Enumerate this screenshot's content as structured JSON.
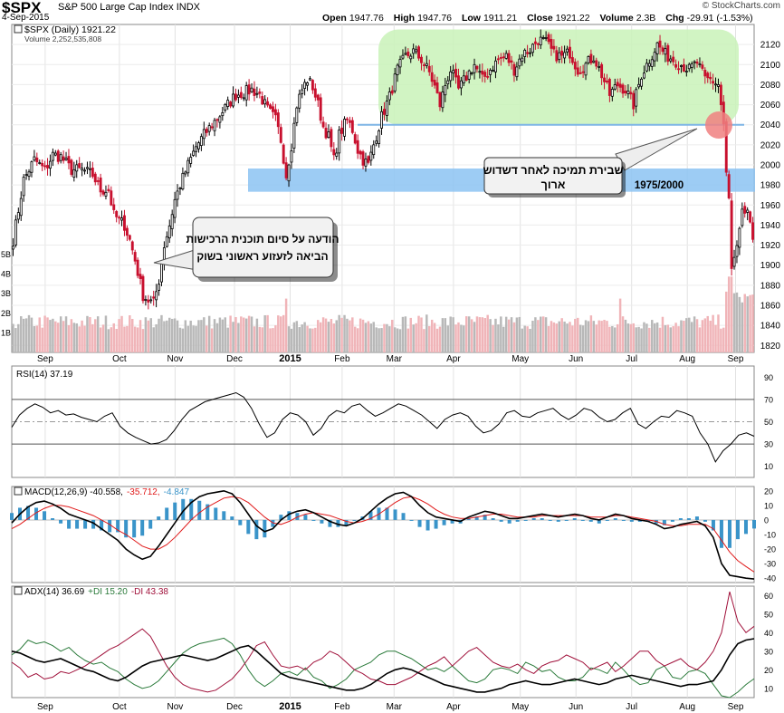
{
  "header": {
    "ticker": "$SPX",
    "name": "S&P 500 Large Cap Index",
    "exchange": "INDX",
    "date": "4-Sep-2015",
    "open_label": "Open",
    "open": "1947.76",
    "high_label": "High",
    "high": "1947.76",
    "low_label": "Low",
    "low": "1911.21",
    "close_label": "Close",
    "close": "1921.22",
    "volume_label": "Volume",
    "volume": "2.3B",
    "chg_label": "Chg",
    "chg": "-29.91 (-1.53%)",
    "brand": "© StockCharts.com"
  },
  "panels": {
    "price_legend": "$SPX (Daily) 1921.22",
    "volume_legend": "Volume 2,252,535,808",
    "rsi_legend": "RSI(14) 37.19",
    "macd_legend": "MACD(12,26,9) -40.558,",
    "macd_signal": "-35.712,",
    "macd_hist": "-4.847",
    "adx_legend": "ADX(14) 36.69",
    "plus_di": "+DI 15.20",
    "minus_di": "-DI 43.38"
  },
  "annotations": {
    "support_break": "שבירת תמיכה לאחר דשדוש\nארוך",
    "fed_note": "הודעה על סיום תוכנית הרכישות\nהביאה לזעזוע ראשוני בשוק",
    "support_level": "1975/2000"
  },
  "colors": {
    "up": "#000000",
    "down": "#c8102e",
    "vol_up": "#b8b8b8",
    "vol_down": "#f0b4b8",
    "consolidation_zone": "#c9f2b9",
    "support_zone": "#8cc3f2",
    "macd_hist": "#3a94c9",
    "signal": "#e01b1b"
  },
  "chart_data": [
    {
      "type": "candlestick",
      "title": "$SPX (Daily) 1921.22",
      "x_month_labels": [
        "Sep",
        "Oct",
        "Nov",
        "Dec",
        "2015",
        "Feb",
        "Mar",
        "Apr",
        "May",
        "Jun",
        "Jul",
        "Aug",
        "Sep"
      ],
      "ylim": [
        1813,
        2140
      ],
      "y_ticks": [
        1820,
        1840,
        1860,
        1880,
        1900,
        1920,
        1940,
        1960,
        1980,
        2000,
        2020,
        2040,
        2060,
        2080,
        2100,
        2120
      ],
      "volume_ticks": [
        "1B",
        "2B",
        "3B",
        "4B",
        "5B"
      ],
      "anchors": [
        [
          0,
          1925
        ],
        [
          4,
          1985
        ],
        [
          8,
          2005
        ],
        [
          12,
          1995
        ],
        [
          15,
          2010
        ],
        [
          18,
          2008
        ],
        [
          22,
          1995
        ],
        [
          26,
          1995
        ],
        [
          30,
          1990
        ],
        [
          33,
          1975
        ],
        [
          36,
          1975
        ],
        [
          38,
          1950
        ],
        [
          40,
          1945
        ],
        [
          42,
          1940
        ],
        [
          44,
          1925
        ],
        [
          46,
          1905
        ],
        [
          49,
          1870
        ],
        [
          51,
          1865
        ],
        [
          53,
          1862
        ],
        [
          55,
          1885
        ],
        [
          57,
          1920
        ],
        [
          59,
          1940
        ],
        [
          61,
          1965
        ],
        [
          63,
          1980
        ],
        [
          66,
          2000
        ],
        [
          69,
          2018
        ],
        [
          72,
          2030
        ],
        [
          75,
          2040
        ],
        [
          78,
          2050
        ],
        [
          81,
          2060
        ],
        [
          84,
          2070
        ],
        [
          87,
          2072
        ],
        [
          90,
          2075
        ],
        [
          93,
          2070
        ],
        [
          96,
          2055
        ],
        [
          99,
          2045
        ],
        [
          101,
          2025
        ],
        [
          103,
          1990
        ],
        [
          105,
          2020
        ],
        [
          107,
          2060
        ],
        [
          109,
          2075
        ],
        [
          111,
          2085
        ],
        [
          113,
          2078
        ],
        [
          115,
          2060
        ],
        [
          117,
          2038
        ],
        [
          119,
          2028
        ],
        [
          121,
          2005
        ],
        [
          123,
          2030
        ],
        [
          126,
          2045
        ],
        [
          128,
          2035
        ],
        [
          130,
          2015
        ],
        [
          132,
          2005
        ],
        [
          134,
          2000
        ],
        [
          136,
          2020
        ],
        [
          139,
          2048
        ],
        [
          142,
          2068
        ],
        [
          145,
          2095
        ],
        [
          148,
          2108
        ],
        [
          151,
          2113
        ],
        [
          154,
          2105
        ],
        [
          157,
          2092
        ],
        [
          159,
          2078
        ],
        [
          161,
          2060
        ],
        [
          163,
          2080
        ],
        [
          165,
          2095
        ],
        [
          168,
          2075
        ],
        [
          171,
          2088
        ],
        [
          174,
          2100
        ],
        [
          177,
          2085
        ],
        [
          180,
          2095
        ],
        [
          183,
          2105
        ],
        [
          186,
          2108
        ],
        [
          189,
          2095
        ],
        [
          192,
          2110
        ],
        [
          195,
          2115
        ],
        [
          198,
          2125
        ],
        [
          201,
          2122
        ],
        [
          204,
          2110
        ],
        [
          207,
          2108
        ],
        [
          210,
          2112
        ],
        [
          213,
          2095
        ],
        [
          216,
          2100
        ],
        [
          219,
          2108
        ],
        [
          222,
          2090
        ],
        [
          225,
          2070
        ],
        [
          228,
          2080
        ],
        [
          231,
          2075
        ],
        [
          234,
          2060
        ],
        [
          237,
          2090
        ],
        [
          240,
          2105
        ],
        [
          243,
          2120
        ],
        [
          246,
          2110
        ],
        [
          249,
          2105
        ],
        [
          252,
          2100
        ],
        [
          255,
          2095
        ],
        [
          258,
          2102
        ],
        [
          261,
          2085
        ],
        [
          263,
          2085
        ],
        [
          266,
          2080
        ],
        [
          268,
          2040
        ],
        [
          269,
          1990
        ],
        [
          270,
          1965
        ],
        [
          271,
          1895
        ],
        [
          273,
          1915
        ],
        [
          275,
          1950
        ],
        [
          277,
          1955
        ],
        [
          279,
          1920
        ]
      ],
      "annotation_levels": {
        "support_line": 2040,
        "support_zone": [
          1975,
          2000
        ],
        "consolidation_range": [
          2040,
          2135
        ]
      }
    },
    {
      "type": "line",
      "title": "RSI(14) 37.19",
      "ylim": [
        0,
        100
      ],
      "y_ticks": [
        10,
        30,
        50,
        70,
        90
      ],
      "reference_lines": [
        30,
        50,
        70
      ],
      "values": [
        45,
        56,
        62,
        66,
        63,
        58,
        60,
        56,
        57,
        54,
        52,
        50,
        55,
        58,
        46,
        40,
        36,
        33,
        30,
        31,
        34,
        42,
        52,
        60,
        64,
        68,
        70,
        72,
        74,
        76,
        72,
        62,
        48,
        36,
        40,
        52,
        58,
        56,
        50,
        38,
        44,
        55,
        60,
        58,
        64,
        66,
        60,
        55,
        58,
        62,
        66,
        64,
        60,
        56,
        50,
        44,
        52,
        56,
        58,
        55,
        46,
        40,
        42,
        48,
        58,
        60,
        55,
        54,
        58,
        60,
        62,
        56,
        52,
        56,
        62,
        60,
        54,
        50,
        52,
        58,
        62,
        48,
        44,
        50,
        55,
        54,
        60,
        58,
        55,
        40,
        30,
        14,
        24,
        30,
        38,
        40,
        37
      ]
    },
    {
      "type": "line",
      "title": "MACD(12,26,9)",
      "ylim": [
        -43,
        23
      ],
      "y_ticks": [
        -40,
        -30,
        -20,
        -10,
        0,
        10,
        20
      ],
      "series": [
        {
          "name": "MACD(12,26,9) -40.558",
          "values": [
            -2,
            4,
            9,
            12,
            13,
            11,
            8,
            4,
            2,
            0,
            -2,
            -6,
            -10,
            -14,
            -20,
            -24,
            -27,
            -25,
            -18,
            -10,
            -2,
            6,
            12,
            16,
            18,
            19,
            20,
            18,
            12,
            4,
            -4,
            -8,
            -6,
            0,
            4,
            6,
            7,
            5,
            2,
            -1,
            -3,
            -4,
            -2,
            1,
            6,
            11,
            15,
            18,
            19,
            16,
            10,
            5,
            2,
            1,
            0,
            -1,
            2,
            4,
            6,
            5,
            3,
            1,
            1,
            2,
            3,
            4,
            3,
            2,
            3,
            4,
            3,
            1,
            0,
            2,
            4,
            3,
            1,
            0,
            -1,
            -3,
            -6,
            -5,
            -3,
            -2,
            -1,
            -4,
            -12,
            -30,
            -38,
            -39,
            -40,
            -40.6
          ]
        },
        {
          "name": "-35.712",
          "values": [
            -6,
            -3,
            1,
            5,
            8,
            10,
            10,
            9,
            7,
            5,
            3,
            0,
            -3,
            -7,
            -10,
            -14,
            -18,
            -20,
            -20,
            -17,
            -12,
            -6,
            0,
            5,
            9,
            12,
            15,
            16,
            15,
            12,
            7,
            2,
            -2,
            -3,
            -1,
            2,
            4,
            5,
            4,
            3,
            1,
            -1,
            -2,
            -1,
            1,
            4,
            8,
            12,
            15,
            16,
            14,
            11,
            7,
            4,
            2,
            1,
            1,
            2,
            3,
            4,
            4,
            3,
            2,
            2,
            2,
            3,
            3,
            3,
            3,
            3,
            3,
            2,
            2,
            2,
            3,
            3,
            2,
            1,
            0,
            -1,
            -3,
            -4,
            -4,
            -3,
            -3,
            -3,
            -6,
            -14,
            -22,
            -28,
            -32,
            -35.7
          ]
        }
      ],
      "histogram_name": "-4.847"
    },
    {
      "type": "line",
      "title": "ADX(14) 36.69",
      "ylim": [
        5,
        65
      ],
      "y_ticks": [
        10,
        20,
        30,
        40,
        50,
        60
      ],
      "series": [
        {
          "name": "ADX(14) 36.69",
          "values": [
            30,
            29,
            27,
            25,
            24,
            25,
            26,
            24,
            22,
            20,
            19,
            17,
            15,
            14,
            16,
            19,
            22,
            24,
            25,
            26,
            27,
            28,
            27,
            26,
            25,
            26,
            28,
            30,
            32,
            33,
            30,
            26,
            22,
            18,
            16,
            15,
            14,
            13,
            12,
            11,
            10,
            9,
            9,
            10,
            12,
            15,
            18,
            20,
            21,
            20,
            18,
            16,
            14,
            12,
            11,
            10,
            9,
            8,
            8,
            9,
            10,
            12,
            13,
            14,
            13,
            12,
            12,
            13,
            14,
            15,
            14,
            13,
            12,
            13,
            15,
            16,
            17,
            16,
            15,
            14,
            13,
            12,
            11,
            12,
            12,
            13,
            14,
            20,
            28,
            34,
            36,
            36.7
          ]
        },
        {
          "name": "+DI 15.20",
          "values": [
            28,
            31,
            36,
            34,
            35,
            33,
            30,
            32,
            28,
            25,
            23,
            24,
            21,
            19,
            15,
            12,
            10,
            11,
            14,
            19,
            24,
            29,
            32,
            34,
            35,
            36,
            37,
            34,
            28,
            20,
            14,
            11,
            14,
            18,
            19,
            17,
            21,
            16,
            14,
            10,
            12,
            15,
            20,
            22,
            24,
            28,
            30,
            30,
            28,
            26,
            23,
            20,
            21,
            19,
            22,
            18,
            14,
            13,
            15,
            20,
            21,
            20,
            18,
            24,
            22,
            19,
            20,
            16,
            14,
            14,
            16,
            21,
            20,
            18,
            24,
            20,
            15,
            12,
            13,
            20,
            22,
            16,
            15,
            19,
            20,
            18,
            12,
            6,
            5,
            8,
            12,
            15.2
          ]
        },
        {
          "name": "-DI 43.38",
          "values": [
            24,
            21,
            16,
            18,
            15,
            16,
            19,
            18,
            20,
            22,
            25,
            28,
            31,
            33,
            36,
            39,
            42,
            38,
            30,
            22,
            16,
            12,
            10,
            9,
            8,
            9,
            12,
            15,
            20,
            26,
            33,
            35,
            28,
            22,
            21,
            22,
            20,
            24,
            26,
            30,
            28,
            24,
            20,
            18,
            15,
            14,
            12,
            12,
            14,
            16,
            19,
            22,
            24,
            27,
            22,
            26,
            30,
            32,
            28,
            24,
            22,
            21,
            23,
            20,
            18,
            22,
            24,
            25,
            28,
            26,
            24,
            20,
            22,
            24,
            19,
            22,
            26,
            30,
            30,
            25,
            22,
            24,
            26,
            22,
            20,
            24,
            30,
            40,
            62,
            46,
            40,
            43.4
          ]
        }
      ]
    }
  ]
}
